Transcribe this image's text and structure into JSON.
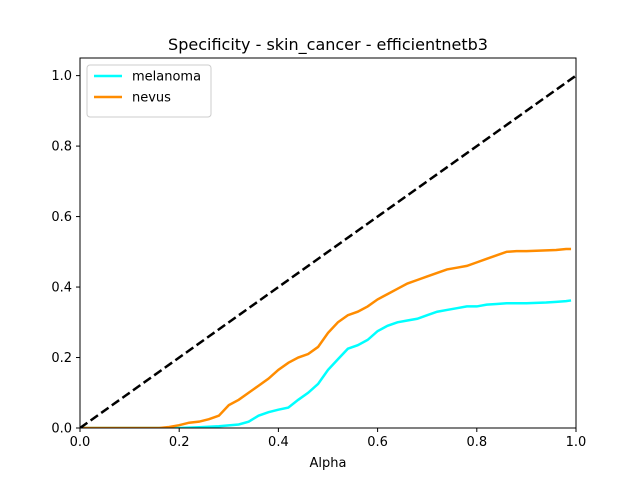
{
  "chart_data": {
    "type": "line",
    "title": "Specificity - skin_cancer - efficientnetb3",
    "xlabel": "Alpha",
    "ylabel": "",
    "xlim": [
      0,
      1
    ],
    "ylim": [
      0,
      1.05
    ],
    "xticks": [
      "0.0",
      "0.2",
      "0.4",
      "0.6",
      "0.8",
      "1.0"
    ],
    "yticks": [
      "0.0",
      "0.2",
      "0.4",
      "0.6",
      "0.8",
      "1.0"
    ],
    "grid": false,
    "legend_position": "top-left",
    "series": [
      {
        "name": "melanoma",
        "color": "#00ffff",
        "style": "solid",
        "points": [
          [
            0.0,
            0.0
          ],
          [
            0.1,
            0.0
          ],
          [
            0.2,
            0.0
          ],
          [
            0.24,
            0.002
          ],
          [
            0.28,
            0.005
          ],
          [
            0.32,
            0.01
          ],
          [
            0.34,
            0.018
          ],
          [
            0.36,
            0.035
          ],
          [
            0.38,
            0.045
          ],
          [
            0.4,
            0.052
          ],
          [
            0.42,
            0.058
          ],
          [
            0.44,
            0.08
          ],
          [
            0.46,
            0.1
          ],
          [
            0.48,
            0.125
          ],
          [
            0.5,
            0.165
          ],
          [
            0.52,
            0.195
          ],
          [
            0.54,
            0.225
          ],
          [
            0.56,
            0.235
          ],
          [
            0.58,
            0.25
          ],
          [
            0.6,
            0.275
          ],
          [
            0.62,
            0.29
          ],
          [
            0.64,
            0.3
          ],
          [
            0.66,
            0.305
          ],
          [
            0.68,
            0.31
          ],
          [
            0.7,
            0.32
          ],
          [
            0.72,
            0.33
          ],
          [
            0.74,
            0.335
          ],
          [
            0.76,
            0.34
          ],
          [
            0.78,
            0.345
          ],
          [
            0.8,
            0.345
          ],
          [
            0.82,
            0.35
          ],
          [
            0.84,
            0.352
          ],
          [
            0.86,
            0.354
          ],
          [
            0.88,
            0.354
          ],
          [
            0.9,
            0.354
          ],
          [
            0.92,
            0.355
          ],
          [
            0.94,
            0.356
          ],
          [
            0.96,
            0.358
          ],
          [
            0.98,
            0.36
          ],
          [
            0.99,
            0.362
          ]
        ]
      },
      {
        "name": "nevus",
        "color": "#ff8c00",
        "style": "solid",
        "points": [
          [
            0.0,
            0.0
          ],
          [
            0.1,
            0.0
          ],
          [
            0.16,
            0.0
          ],
          [
            0.18,
            0.003
          ],
          [
            0.2,
            0.008
          ],
          [
            0.22,
            0.015
          ],
          [
            0.24,
            0.018
          ],
          [
            0.26,
            0.025
          ],
          [
            0.28,
            0.035
          ],
          [
            0.3,
            0.065
          ],
          [
            0.32,
            0.08
          ],
          [
            0.34,
            0.1
          ],
          [
            0.36,
            0.12
          ],
          [
            0.38,
            0.14
          ],
          [
            0.4,
            0.165
          ],
          [
            0.42,
            0.185
          ],
          [
            0.44,
            0.2
          ],
          [
            0.46,
            0.21
          ],
          [
            0.48,
            0.23
          ],
          [
            0.5,
            0.27
          ],
          [
            0.52,
            0.3
          ],
          [
            0.54,
            0.32
          ],
          [
            0.56,
            0.33
          ],
          [
            0.58,
            0.345
          ],
          [
            0.6,
            0.365
          ],
          [
            0.62,
            0.38
          ],
          [
            0.64,
            0.395
          ],
          [
            0.66,
            0.41
          ],
          [
            0.68,
            0.42
          ],
          [
            0.7,
            0.43
          ],
          [
            0.72,
            0.44
          ],
          [
            0.74,
            0.45
          ],
          [
            0.76,
            0.455
          ],
          [
            0.78,
            0.46
          ],
          [
            0.8,
            0.47
          ],
          [
            0.82,
            0.48
          ],
          [
            0.84,
            0.49
          ],
          [
            0.86,
            0.5
          ],
          [
            0.88,
            0.502
          ],
          [
            0.9,
            0.502
          ],
          [
            0.92,
            0.503
          ],
          [
            0.94,
            0.504
          ],
          [
            0.96,
            0.505
          ],
          [
            0.98,
            0.508
          ],
          [
            0.99,
            0.508
          ]
        ]
      },
      {
        "name": "",
        "color": "#000000",
        "style": "dashed",
        "points": [
          [
            0.0,
            0.0
          ],
          [
            1.0,
            1.0
          ]
        ]
      }
    ]
  }
}
